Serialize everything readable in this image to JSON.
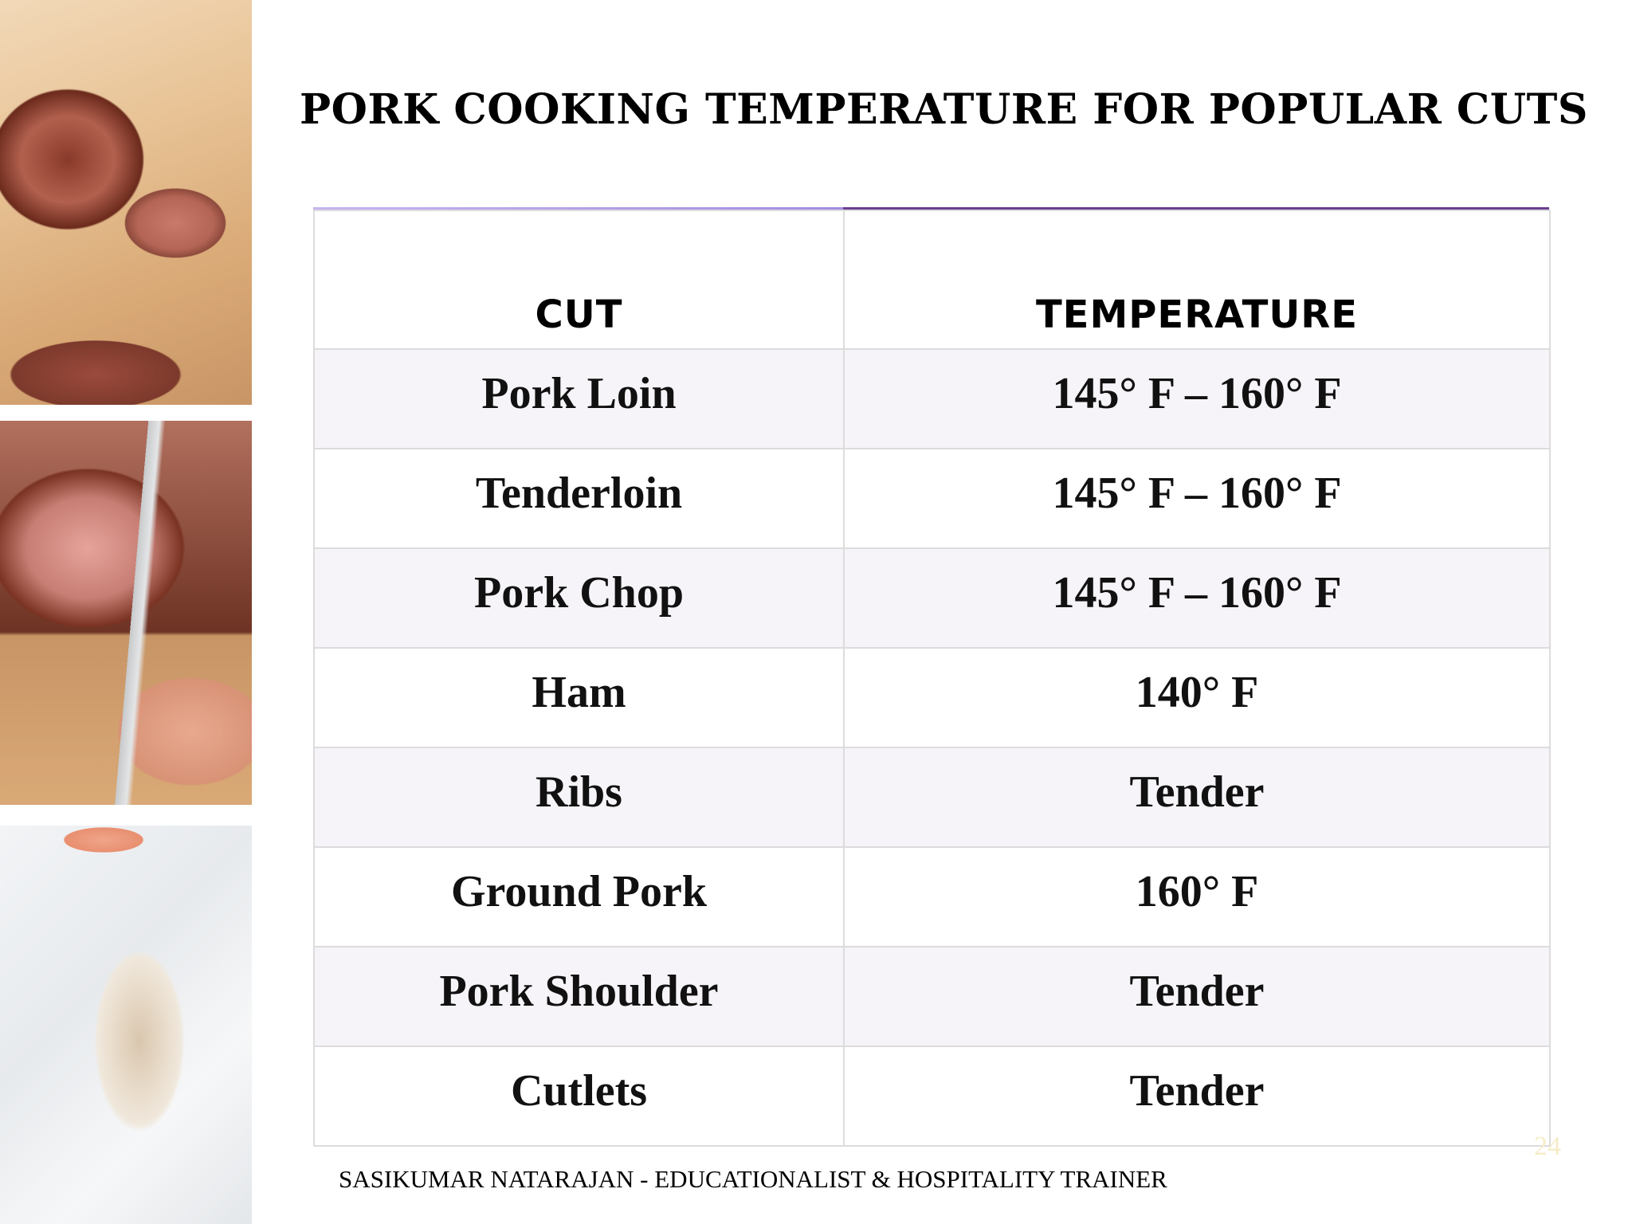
{
  "slide": {
    "title": "Pork Cooking Temperature for Popular Cuts",
    "images": [
      {
        "subject": "sliced roast beef on cutting board"
      },
      {
        "subject": "hand slicing roast with knife"
      },
      {
        "subject": "raw fish fillet on ice"
      }
    ]
  },
  "table": {
    "headers": [
      "CUT",
      "TEMPERATURE"
    ],
    "rows": [
      {
        "cut": "Pork Loin",
        "temperature": "145° F – 160° F"
      },
      {
        "cut": "Tenderloin",
        "temperature": "145° F – 160° F"
      },
      {
        "cut": "Pork Chop",
        "temperature": "145° F – 160° F"
      },
      {
        "cut": "Ham",
        "temperature": "140° F"
      },
      {
        "cut": "Ribs",
        "temperature": "Tender"
      },
      {
        "cut": "Ground Pork",
        "temperature": "160° F"
      },
      {
        "cut": "Pork Shoulder",
        "temperature": "Tender"
      },
      {
        "cut": "Cutlets",
        "temperature": "Tender"
      }
    ]
  },
  "footer": {
    "author": "SASIKUMAR NATARAJAN - EDUCATIONALIST & HOSPITALITY TRAINER",
    "page_number": "24"
  },
  "colors": {
    "accent_light": "#a48ce0",
    "accent_dark": "#6a3f8f",
    "row_stripe": "#f6f4f8",
    "page_number": "#f5ecc8"
  }
}
